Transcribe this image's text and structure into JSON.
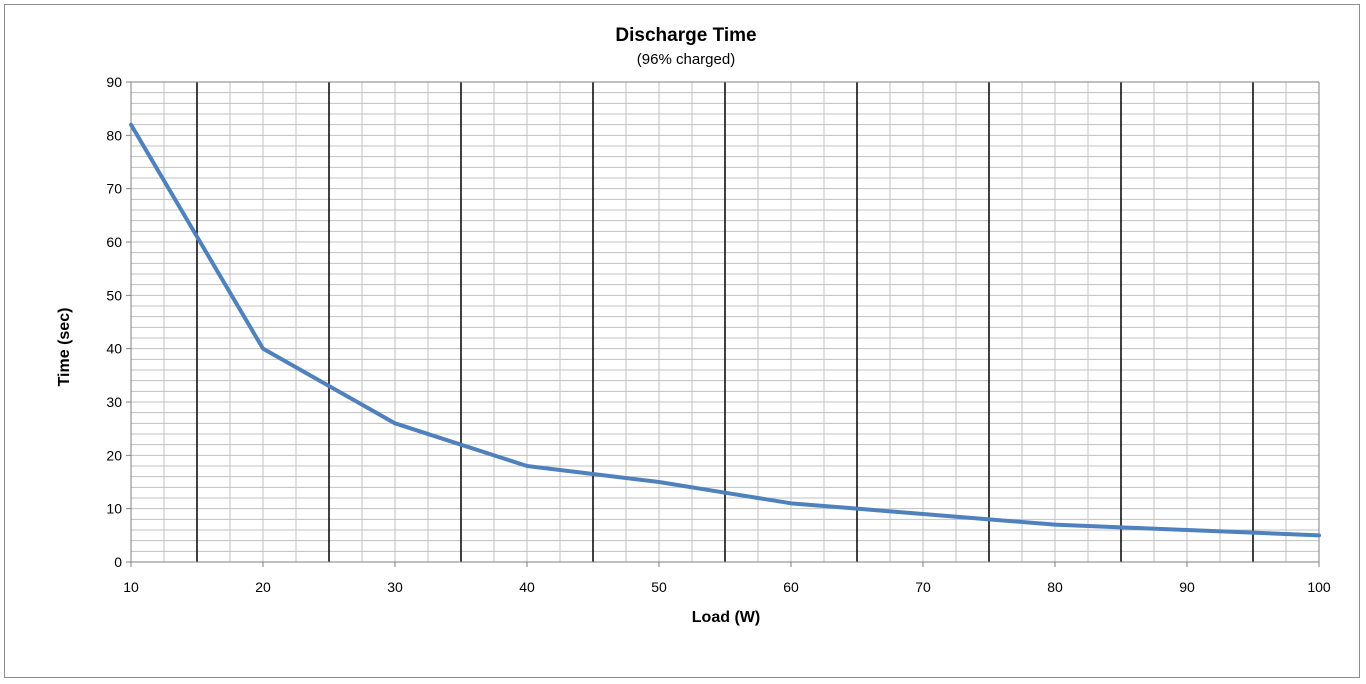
{
  "chart_data": {
    "type": "line",
    "title": "Discharge Time",
    "subtitle": "(96% charged)",
    "xlabel": "Load (W)",
    "ylabel": "Time (sec)",
    "xlim": [
      10,
      100
    ],
    "ylim": [
      0,
      90
    ],
    "x_ticks": [
      10,
      20,
      30,
      40,
      50,
      60,
      70,
      80,
      90,
      100
    ],
    "y_ticks": [
      0,
      10,
      20,
      30,
      40,
      50,
      60,
      70,
      80,
      90
    ],
    "x_minor_step": 2.5,
    "x_major_gridline_step": 5,
    "y_minor_step": 2,
    "grid": true,
    "legend": "none",
    "series": [
      {
        "color": "#4f81bd",
        "x": [
          10,
          15,
          20,
          25,
          30,
          35,
          40,
          45,
          50,
          55,
          60,
          65,
          70,
          75,
          80,
          85,
          90,
          95,
          100
        ],
        "values": [
          82,
          61,
          40,
          33,
          26,
          22,
          18,
          16.5,
          15,
          13,
          11,
          10,
          9,
          8,
          7,
          6.5,
          6,
          5.5,
          5
        ]
      }
    ],
    "colors": {
      "minor_grid": "#c0c0c0",
      "major_grid": "#000000",
      "axis": "#808080"
    }
  }
}
